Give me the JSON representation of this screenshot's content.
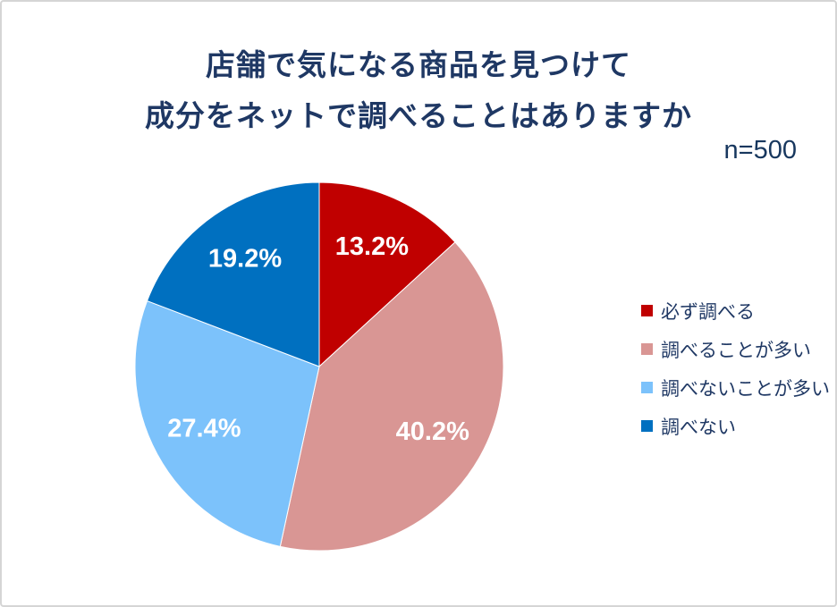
{
  "chart_data": {
    "type": "pie",
    "title_line1": "店舗で気になる商品を見つけて",
    "title_line2": "成分をネットで調べることはありますか",
    "sample_size_label": "n=500",
    "categories": [
      "必ず調べる",
      "調べることが多い",
      "調べないことが多い",
      "調べない"
    ],
    "values": [
      13.2,
      40.2,
      27.4,
      19.2
    ],
    "slices": [
      {
        "label": "必ず調べる",
        "value": 13.2,
        "display": "13.2%",
        "color": "#c00000"
      },
      {
        "label": "調べることが多い",
        "value": 40.2,
        "display": "40.2%",
        "color": "#d99694"
      },
      {
        "label": "調べないことが多い",
        "value": 27.4,
        "display": "27.4%",
        "color": "#7cc2fb"
      },
      {
        "label": "調べない",
        "value": 19.2,
        "display": "19.2%",
        "color": "#0070c0"
      }
    ],
    "start_angle_deg": 0,
    "direction": "clockwise",
    "legend_position": "right",
    "label_position": "inside",
    "colors": {
      "title_text": "#1f3864",
      "sample_text": "#17375e",
      "legend_text": "#1f3864",
      "slice_label_text": "#ffffff",
      "slice_separator": "#ffffff",
      "frame_border": "#d5d5d5",
      "background": "#ffffff"
    }
  }
}
